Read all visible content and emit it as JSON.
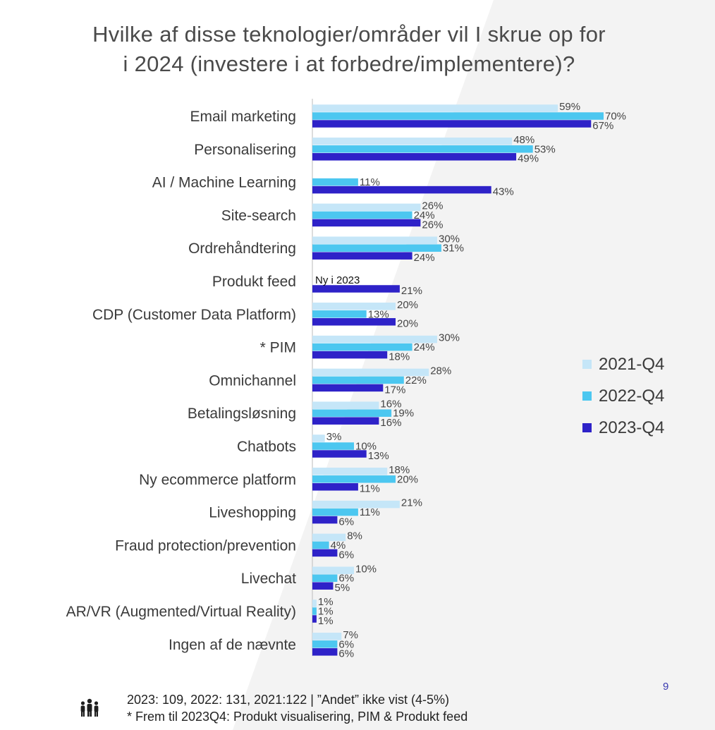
{
  "title_line1": "Hvilke af disse teknologier/områder vil I skrue op for",
  "title_line2": "i 2024 (investere i at forbedre/implementere)?",
  "chart_data": {
    "type": "bar",
    "orientation": "horizontal",
    "title": "Hvilke af disse teknologier/områder vil I skrue op for i 2024 (investere i at forbedre/implementere)?",
    "categories": [
      "Email marketing",
      "Personalisering",
      "AI / Machine Learning",
      "Site-search",
      "Ordrehåndtering",
      "Produkt feed",
      "CDP (Customer Data Platform)",
      "* PIM",
      "Omnichannel",
      "Betalingsløsning",
      "Chatbots",
      "Ny ecommerce platform",
      "Liveshopping",
      "Fraud protection/prevention",
      "Livechat",
      "AR/VR (Augmented/Virtual Reality)",
      "Ingen af de nævnte"
    ],
    "series": [
      {
        "name": "2021-Q4",
        "color": "#c5e6f8",
        "values": [
          59,
          48,
          null,
          26,
          30,
          null,
          20,
          30,
          28,
          16,
          3,
          18,
          21,
          8,
          10,
          1,
          7
        ]
      },
      {
        "name": "2022-Q4",
        "color": "#4cc7f0",
        "values": [
          70,
          53,
          11,
          24,
          31,
          null,
          13,
          24,
          22,
          19,
          10,
          20,
          11,
          4,
          6,
          1,
          6
        ]
      },
      {
        "name": "2023-Q4",
        "color": "#2e22c8",
        "values": [
          67,
          49,
          43,
          26,
          24,
          21,
          20,
          18,
          17,
          16,
          13,
          11,
          6,
          6,
          5,
          1,
          6
        ]
      }
    ],
    "value_suffix": "%",
    "annotations": [
      {
        "category": "Produkt feed",
        "text": "Ny i 2023"
      }
    ],
    "legend_position": "right",
    "grid": false
  },
  "legend": [
    "2021-Q4",
    "2022-Q4",
    "2023-Q4"
  ],
  "page_number": "9",
  "footer_line1": "2023: 109, 2022: 131, 2021:122  | ”Andet” ikke vist (4-5%)",
  "footer_line2": "* Frem til 2023Q4: Produkt visualisering, PIM & Produkt feed",
  "icons": {
    "footer": "people-icon"
  }
}
